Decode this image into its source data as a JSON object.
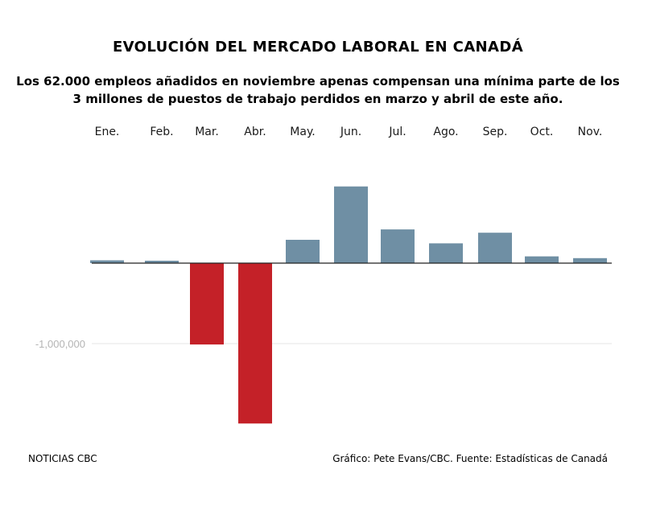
{
  "title": "EVOLUCIÓN DEL MERCADO LABORAL EN CANADÁ",
  "subtitle_line1": "Los 62.000 empleos añadidos en noviembre apenas compensan una mínima parte de los",
  "subtitle_line2": "3 millones de puestos de trabajo perdidos en marzo y abril de este año.",
  "footer": {
    "source_left": "NOTICIAS CBC",
    "credit_right": "Gráfico: Pete Evans/CBC. Fuente: Estadísticas de Canadá"
  },
  "chart_data": {
    "type": "bar",
    "categories": [
      "Ene.",
      "Feb.",
      "Mar.",
      "Abr.",
      "May.",
      "Jun.",
      "Jul.",
      "Ago.",
      "Sep.",
      "Oct.",
      "Nov."
    ],
    "values": [
      35000,
      30000,
      -1011000,
      -1993000,
      290000,
      953000,
      419000,
      246000,
      378000,
      84000,
      62000
    ],
    "yticks": [
      -1000000
    ],
    "ytick_labels": [
      "-1,000,000"
    ],
    "ylim": [
      -2000000,
      1000000
    ],
    "colors": {
      "positive": "#6f8fa4",
      "negative": "#c42128",
      "baseline": "#222222",
      "gridline": "#e6e6e6"
    }
  }
}
